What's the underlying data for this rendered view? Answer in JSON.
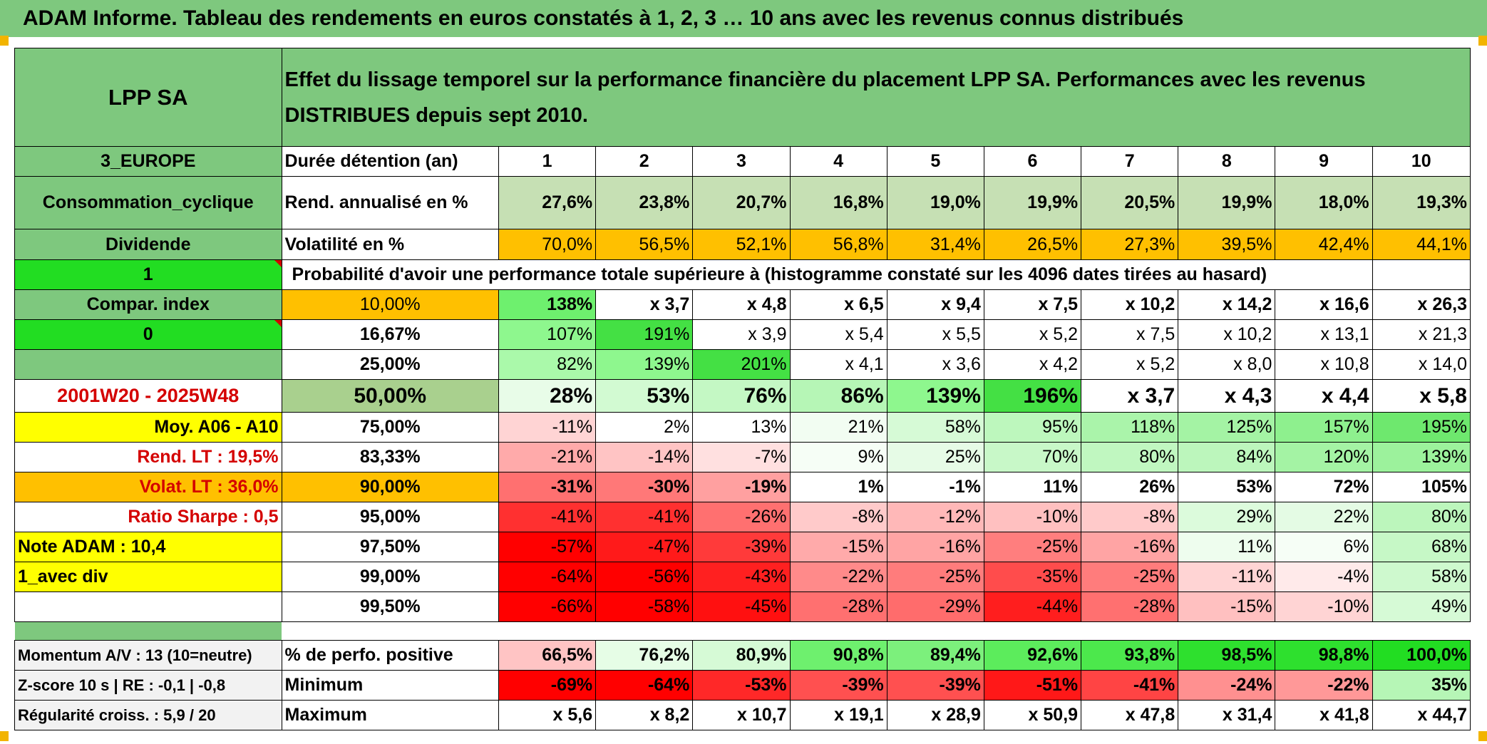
{
  "title": "ADAM Informe. Tableau des rendements en euros constatés à 1, 2, 3 … 10 ans avec les revenus connus distribués",
  "header": {
    "fund_name": "LPP SA",
    "description": "Effet du lissage temporel sur la performance financière du placement LPP SA. Performances avec les revenus DISTRIBUES depuis sept 2010."
  },
  "left_column": {
    "region": "3_EUROPE",
    "sector": "Consommation_cyclique",
    "dividend_label": "Dividende",
    "value_one": "1",
    "compar_index": "Compar. index",
    "value_zero": "0",
    "period": "2001W20 - 2025W48",
    "moy": "Moy. A06 - A10",
    "rend_lt": "Rend. LT :   19,5%",
    "volat_lt": "Volat. LT :   36,0%",
    "sharpe": "Ratio Sharpe :    0,5",
    "note_adam": "Note ADAM : 10,4",
    "avec_div": "1_avec div",
    "momentum": "Momentum A/V : 13 (10=neutre)",
    "zscore": "Z-score 10 s | RE : -0,1 | -0,8",
    "regularite": "Régularité croiss. : 5,9 / 20"
  },
  "row_labels": {
    "duree": "Durée détention (an)",
    "rend": "Rend. annualisé en %",
    "volat": "Volatilité en %",
    "proba": "Probabilité d'avoir une performance totale supérieure à (histogramme constaté sur les 4096 dates tirées au hasard)",
    "positive": "% de perfo. positive",
    "minimum": "Minimum",
    "maximum": "Maximum"
  },
  "years": [
    "1",
    "2",
    "3",
    "4",
    "5",
    "6",
    "7",
    "8",
    "9",
    "10"
  ],
  "rend_values": [
    "27,6%",
    "23,8%",
    "20,7%",
    "16,8%",
    "19,0%",
    "19,9%",
    "20,5%",
    "19,9%",
    "18,0%",
    "19,3%"
  ],
  "volat_values": [
    "70,0%",
    "56,5%",
    "52,1%",
    "56,8%",
    "31,4%",
    "26,5%",
    "27,3%",
    "39,5%",
    "42,4%",
    "44,1%"
  ],
  "percentiles": [
    {
      "p": "10,00%",
      "values": [
        "138%",
        "x 3,7",
        "x 4,8",
        "x 6,5",
        "x 9,4",
        "x 7,5",
        "x 10,2",
        "x 14,2",
        "x 16,6",
        "x 26,3"
      ]
    },
    {
      "p": "16,67%",
      "values": [
        "107%",
        "191%",
        "x 3,9",
        "x 5,4",
        "x 5,5",
        "x 5,2",
        "x 7,5",
        "x 10,2",
        "x 13,1",
        "x 21,3"
      ]
    },
    {
      "p": "25,00%",
      "values": [
        "82%",
        "139%",
        "201%",
        "x 4,1",
        "x 3,6",
        "x 4,2",
        "x 5,2",
        "x 8,0",
        "x 10,8",
        "x 14,0"
      ]
    },
    {
      "p": "50,00%",
      "values": [
        "28%",
        "53%",
        "76%",
        "86%",
        "139%",
        "196%",
        "x 3,7",
        "x 4,3",
        "x 4,4",
        "x 5,8"
      ]
    },
    {
      "p": "75,00%",
      "values": [
        "-11%",
        "2%",
        "13%",
        "21%",
        "58%",
        "95%",
        "118%",
        "125%",
        "157%",
        "195%"
      ]
    },
    {
      "p": "83,33%",
      "values": [
        "-21%",
        "-14%",
        "-7%",
        "9%",
        "25%",
        "70%",
        "80%",
        "84%",
        "120%",
        "139%"
      ]
    },
    {
      "p": "90,00%",
      "values": [
        "-31%",
        "-30%",
        "-19%",
        "1%",
        "-1%",
        "11%",
        "26%",
        "53%",
        "72%",
        "105%"
      ]
    },
    {
      "p": "95,00%",
      "values": [
        "-41%",
        "-41%",
        "-26%",
        "-8%",
        "-12%",
        "-10%",
        "-8%",
        "29%",
        "22%",
        "80%"
      ]
    },
    {
      "p": "97,50%",
      "values": [
        "-57%",
        "-47%",
        "-39%",
        "-15%",
        "-16%",
        "-25%",
        "-16%",
        "11%",
        "6%",
        "68%"
      ]
    },
    {
      "p": "99,00%",
      "values": [
        "-64%",
        "-56%",
        "-43%",
        "-22%",
        "-25%",
        "-35%",
        "-25%",
        "-11%",
        "-4%",
        "58%"
      ]
    },
    {
      "p": "99,50%",
      "values": [
        "-66%",
        "-58%",
        "-45%",
        "-28%",
        "-29%",
        "-44%",
        "-28%",
        "-15%",
        "-10%",
        "49%"
      ]
    }
  ],
  "positive_values": [
    "66,5%",
    "76,2%",
    "80,9%",
    "90,8%",
    "89,4%",
    "92,6%",
    "93,8%",
    "98,5%",
    "98,8%",
    "100,0%"
  ],
  "min_values": [
    "-69%",
    "-64%",
    "-53%",
    "-39%",
    "-39%",
    "-51%",
    "-41%",
    "-24%",
    "-22%",
    "35%"
  ],
  "max_values": [
    "x 5,6",
    "x 8,2",
    "x 10,7",
    "x 19,1",
    "x 28,9",
    "x 50,9",
    "x 47,8",
    "x 31,4",
    "x 41,8",
    "x 44,7"
  ],
  "colors": {
    "header_green": "#7ec87e",
    "bright_green": "#22dd22",
    "orange": "#ffc000",
    "yellow": "#ffff00",
    "label_red": "#d40000"
  },
  "cell_colors": {
    "rend": [
      "#c6e0b4",
      "#c6e0b4",
      "#c6e0b4",
      "#c6e0b4",
      "#c6e0b4",
      "#c6e0b4",
      "#c6e0b4",
      "#c6e0b4",
      "#c6e0b4",
      "#c6e0b4"
    ],
    "volat": [
      "#ffc000",
      "#ffc000",
      "#ffc000",
      "#ffc000",
      "#ffc000",
      "#ffc000",
      "#ffc000",
      "#ffc000",
      "#ffc000",
      "#ffc000"
    ],
    "percentiles": [
      [
        "#6ef06e",
        "#ffffff",
        "#ffffff",
        "#ffffff",
        "#ffffff",
        "#ffffff",
        "#ffffff",
        "#ffffff",
        "#ffffff",
        "#ffffff"
      ],
      [
        "#8ef78e",
        "#44e044",
        "#ffffff",
        "#ffffff",
        "#ffffff",
        "#ffffff",
        "#ffffff",
        "#ffffff",
        "#ffffff",
        "#ffffff"
      ],
      [
        "#aaf9aa",
        "#8ef78e",
        "#44e044",
        "#ffffff",
        "#ffffff",
        "#ffffff",
        "#ffffff",
        "#ffffff",
        "#ffffff",
        "#ffffff"
      ],
      [
        "#e8fce8",
        "#d2fad2",
        "#c4f8c4",
        "#b6f6b6",
        "#8ef78e",
        "#44e044",
        "#ffffff",
        "#ffffff",
        "#ffffff",
        "#ffffff"
      ],
      [
        "#ffd4d4",
        "#ffffff",
        "#ffffff",
        "#f2fdf2",
        "#d6fad6",
        "#bdf7bd",
        "#aaf4aa",
        "#a4f3a4",
        "#8ef08e",
        "#6ee86e"
      ],
      [
        "#ffaaaa",
        "#ffc4c4",
        "#ffe0e0",
        "#f6fef6",
        "#e6fbe6",
        "#c8f8c8",
        "#c0f7c0",
        "#bcf6bc",
        "#a4f3a4",
        "#9cf29c"
      ],
      [
        "#ff7070",
        "#ff7878",
        "#ffa0a0",
        "#ffffff",
        "#ffffff",
        "#ffffff",
        "#ffffff",
        "#ffffff",
        "#ffffff",
        "#ffffff"
      ],
      [
        "#ff3030",
        "#ff3030",
        "#ff7070",
        "#ffcaca",
        "#ffb8b8",
        "#ffc0c0",
        "#ffcaca",
        "#dcfbdc",
        "#e4fbe4",
        "#bcf6bc"
      ],
      [
        "#ff0000",
        "#ff1a1a",
        "#ff3a3a",
        "#ffaaaa",
        "#ffa4a4",
        "#ff7e7e",
        "#ffa4a4",
        "#eefdee",
        "#f6fef6",
        "#c6f8c6"
      ],
      [
        "#ff0000",
        "#ff0000",
        "#ff2020",
        "#ff8a8a",
        "#ff7c7c",
        "#ff4c4c",
        "#ff7c7c",
        "#ffd4d4",
        "#ffeaea",
        "#cef9ce"
      ],
      [
        "#ff0000",
        "#ff0000",
        "#ff1010",
        "#ff7070",
        "#ff6c6c",
        "#ff1e1e",
        "#ff7070",
        "#ffc0c0",
        "#ffd4d4",
        "#d6fad6"
      ]
    ],
    "positive": [
      "#ffc4c4",
      "#e6fde6",
      "#d6fad6",
      "#6ef06e",
      "#7cf07c",
      "#5cec5c",
      "#4ce84c",
      "#2ee02e",
      "#2ee02e",
      "#22dd22"
    ],
    "minimum": [
      "#ff0000",
      "#ff0000",
      "#ff2828",
      "#ff5050",
      "#ff5050",
      "#ff1818",
      "#ff4444",
      "#ff9090",
      "#ff9898",
      "#b6f6b6"
    ],
    "maximum": [
      "#ffffff",
      "#ffffff",
      "#ffffff",
      "#ffffff",
      "#ffffff",
      "#ffffff",
      "#ffffff",
      "#ffffff",
      "#ffffff",
      "#ffffff"
    ]
  }
}
